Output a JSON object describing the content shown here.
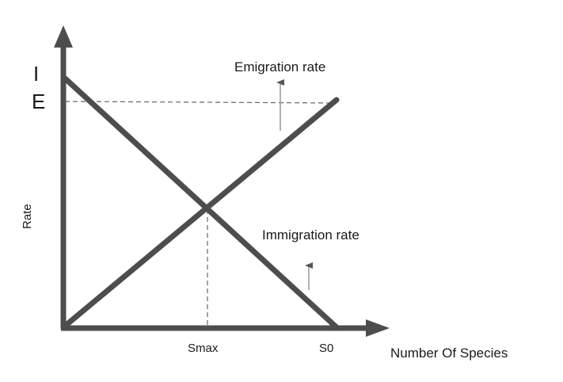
{
  "diagram": {
    "y_axis_label": "Rate",
    "x_axis_label": "Number Of Species",
    "i_label": "I",
    "e_label": "E",
    "emigration_label": "Emigration rate",
    "immigration_label": "Immigration rate",
    "smax_label": "Smax",
    "s0_label": "S0"
  },
  "colors": {
    "axis": "#4d4d4d",
    "line": "#4d4d4d",
    "dashed": "#666666",
    "small_arrow": "#888888",
    "text": "#1a1a1a"
  }
}
